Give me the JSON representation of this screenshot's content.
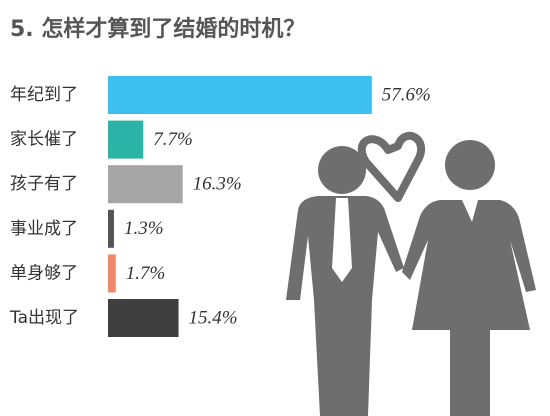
{
  "chart_data": {
    "type": "bar",
    "orientation": "horizontal",
    "title": "5. 怎样才算到了结婚的时机？",
    "categories": [
      "年纪到了",
      "家长催了",
      "孩子有了",
      "事业成了",
      "单身够了",
      "Ta出现了"
    ],
    "values": [
      57.6,
      7.7,
      16.3,
      1.3,
      1.7,
      15.4
    ],
    "value_labels": [
      "57.6%",
      "7.7%",
      "16.3%",
      "1.3%",
      "1.7%",
      "15.4%"
    ],
    "colors": [
      "#3dbff0",
      "#2bb3a8",
      "#a5a5a5",
      "#555555",
      "#f0896b",
      "#3f3f3f"
    ]
  }
}
